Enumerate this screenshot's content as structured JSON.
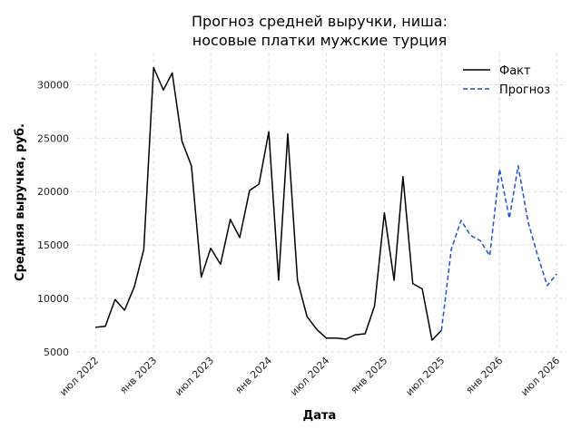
{
  "chart_data": {
    "type": "line",
    "title_line1": "Прогноз средней выручки, ниша:",
    "title_line2": "носовые платки мужские турция",
    "xlabel": "Дата",
    "ylabel": "Средняя выручка, руб.",
    "ylim": [
      5000,
      33000
    ],
    "yticks": [
      5000,
      10000,
      15000,
      20000,
      25000,
      30000
    ],
    "xlim": [
      "2022-05-01",
      "2026-08-01"
    ],
    "xticks": [
      {
        "date": "2022-07-01",
        "label": "июл 2022"
      },
      {
        "date": "2023-01-01",
        "label": "янв 2023"
      },
      {
        "date": "2023-07-01",
        "label": "июл 2023"
      },
      {
        "date": "2024-01-01",
        "label": "янв 2024"
      },
      {
        "date": "2024-07-01",
        "label": "июл 2024"
      },
      {
        "date": "2025-01-01",
        "label": "янв 2025"
      },
      {
        "date": "2025-07-01",
        "label": "июл 2025"
      },
      {
        "date": "2026-01-01",
        "label": "янв 2026"
      },
      {
        "date": "2026-07-01",
        "label": "июл 2026"
      }
    ],
    "grid": true,
    "legend_position": "top-right",
    "series": [
      {
        "name": "Факт",
        "color": "#000000",
        "style": "solid",
        "x": [
          "2022-07-01",
          "2022-08-01",
          "2022-09-01",
          "2022-10-01",
          "2022-11-01",
          "2022-12-01",
          "2023-01-01",
          "2023-02-01",
          "2023-03-01",
          "2023-04-01",
          "2023-05-01",
          "2023-06-01",
          "2023-07-01",
          "2023-08-01",
          "2023-09-01",
          "2023-10-01",
          "2023-11-01",
          "2023-12-01",
          "2024-01-01",
          "2024-02-01",
          "2024-03-01",
          "2024-04-01",
          "2024-05-01",
          "2024-06-01",
          "2024-07-01",
          "2024-08-01",
          "2024-09-01",
          "2024-10-01",
          "2024-11-01",
          "2024-12-01",
          "2025-01-01",
          "2025-02-01",
          "2025-03-01",
          "2025-04-01",
          "2025-05-01",
          "2025-06-01",
          "2025-07-01"
        ],
        "y": [
          7300,
          7400,
          9900,
          8900,
          11100,
          14600,
          31600,
          29500,
          31100,
          24700,
          22400,
          12000,
          14700,
          13200,
          17400,
          15700,
          20100,
          20700,
          25600,
          11700,
          25400,
          11700,
          8300,
          7100,
          6300,
          6300,
          6200,
          6600,
          6700,
          9300,
          18000,
          11700,
          21400,
          11400,
          10900,
          6100,
          7000
        ]
      },
      {
        "name": "Прогноз",
        "color": "#1f4fd6",
        "style": "dashed",
        "x": [
          "2025-07-01",
          "2025-08-01",
          "2025-09-01",
          "2025-10-01",
          "2025-11-01",
          "2025-12-01",
          "2026-01-01",
          "2026-02-01",
          "2026-03-01",
          "2026-04-01",
          "2026-05-01",
          "2026-06-01",
          "2026-07-01"
        ],
        "y": [
          7000,
          14600,
          17300,
          15900,
          15400,
          14000,
          22100,
          17500,
          22400,
          17200,
          14100,
          11200,
          12300
        ]
      }
    ]
  }
}
